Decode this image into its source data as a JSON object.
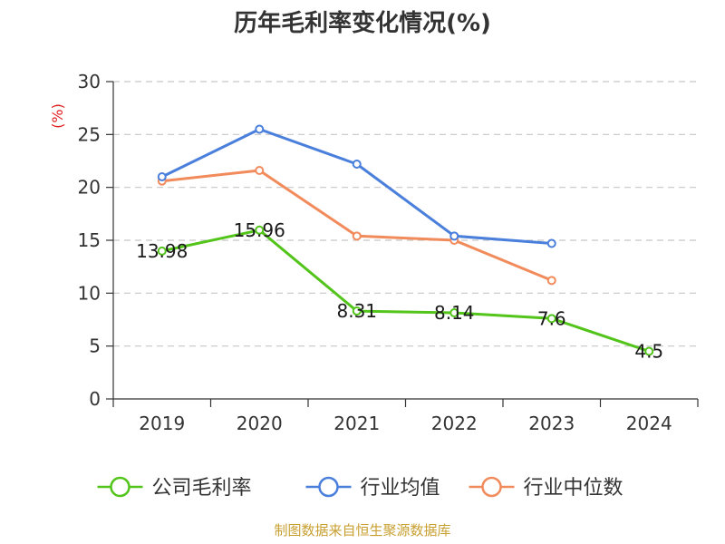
{
  "chart_data": {
    "type": "line",
    "title": "历年毛利率变化情况(%)",
    "ylabel": "(%)",
    "categories": [
      "2019",
      "2020",
      "2021",
      "2022",
      "2023",
      "2024"
    ],
    "ylim": [
      0,
      30
    ],
    "yticks": [
      "0",
      "5",
      "10",
      "15",
      "20",
      "25",
      "30"
    ],
    "grid": true,
    "legend_position": "bottom",
    "series": [
      {
        "name": "公司毛利率",
        "color": "#52c41a",
        "values": [
          13.98,
          15.96,
          8.31,
          8.14,
          7.6,
          4.5
        ],
        "labels": [
          "13.98",
          "15.96",
          "8.31",
          "8.14",
          "7.6",
          "4.5"
        ]
      },
      {
        "name": "行业均值",
        "color": "#4a7fdc",
        "values": [
          21.0,
          25.5,
          22.2,
          15.4,
          14.7,
          null
        ]
      },
      {
        "name": "行业中位数",
        "color": "#f28b5b",
        "values": [
          20.6,
          21.6,
          15.4,
          15.0,
          11.2,
          null
        ]
      }
    ]
  },
  "footer": {
    "source": "制图数据来自恒生聚源数据库"
  }
}
